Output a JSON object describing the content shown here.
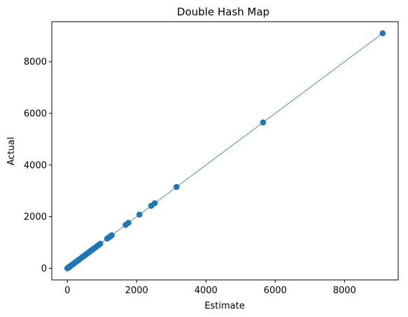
{
  "chart_data": {
    "type": "scatter",
    "title": "Double Hash Map",
    "xlabel": "Estimate",
    "ylabel": "Actual",
    "xlim": [
      -450,
      9550
    ],
    "ylim": [
      -450,
      9550
    ],
    "xticks": [
      0,
      2000,
      4000,
      6000,
      8000
    ],
    "yticks": [
      0,
      2000,
      4000,
      6000,
      8000
    ],
    "grid": false,
    "legend": "none",
    "colors": {
      "series": "#1f77b4",
      "axes": "#000000"
    },
    "reference_line": {
      "from": [
        0,
        0
      ],
      "to": [
        9100,
        9100
      ]
    },
    "series": [
      {
        "x": [
          0,
          10,
          20,
          30,
          40,
          50,
          60,
          70,
          80,
          100,
          120,
          140,
          160,
          180,
          200,
          230,
          260,
          290,
          320,
          350,
          380,
          410,
          440,
          470,
          500,
          530,
          560,
          590,
          620,
          650,
          680,
          720,
          760,
          800,
          850,
          900,
          950,
          1150,
          1200,
          1250,
          1280,
          1680,
          1760,
          2080,
          2420,
          2520,
          3150,
          5650,
          9100
        ],
        "y": [
          0,
          10,
          20,
          30,
          40,
          50,
          60,
          70,
          80,
          100,
          120,
          140,
          160,
          180,
          200,
          230,
          260,
          290,
          320,
          350,
          380,
          410,
          440,
          470,
          500,
          530,
          560,
          590,
          620,
          650,
          680,
          720,
          760,
          800,
          850,
          900,
          950,
          1150,
          1200,
          1250,
          1280,
          1680,
          1760,
          2080,
          2420,
          2520,
          3150,
          5650,
          9100
        ]
      }
    ]
  }
}
